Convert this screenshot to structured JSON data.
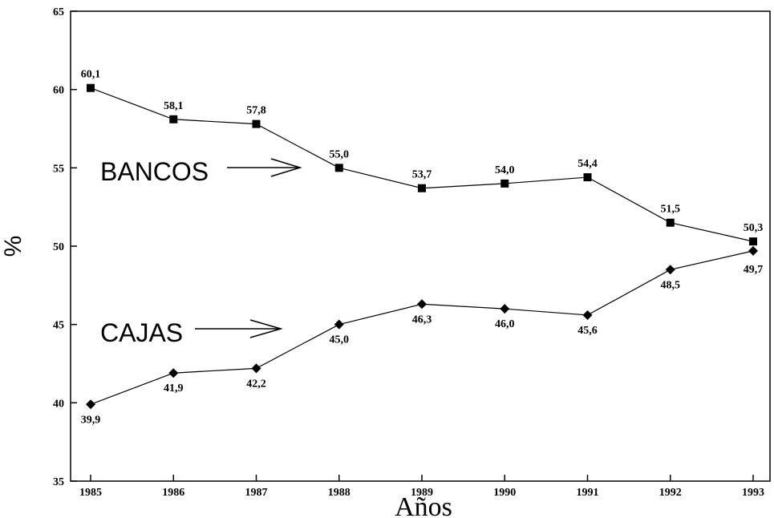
{
  "chart_data": {
    "type": "line",
    "x": [
      "1985",
      "1986",
      "1987",
      "1988",
      "1989",
      "1990",
      "1991",
      "1992",
      "1993"
    ],
    "xlabel": "Años",
    "ylabel": "%",
    "ylim": [
      35,
      65
    ],
    "yticks": [
      "35",
      "40",
      "45",
      "50",
      "55",
      "60",
      "65"
    ],
    "series": [
      {
        "name": "BANCOS",
        "marker": "square",
        "values": [
          60.1,
          58.1,
          57.8,
          55.0,
          53.7,
          54.0,
          54.4,
          51.5,
          50.3
        ],
        "labels": [
          "60,1",
          "58,1",
          "57,8",
          "55,0",
          "53,7",
          "54,0",
          "54,4",
          "51,5",
          "50,3"
        ]
      },
      {
        "name": "CAJAS",
        "marker": "diamond",
        "values": [
          39.9,
          41.9,
          42.2,
          45.0,
          46.3,
          46.0,
          45.6,
          48.5,
          49.7
        ],
        "labels": [
          "39,9",
          "41,9",
          "42,2",
          "45,0",
          "46,3",
          "46,0",
          "45,6",
          "48,5",
          "49,7"
        ]
      }
    ],
    "grid": false,
    "color": "#000000"
  }
}
